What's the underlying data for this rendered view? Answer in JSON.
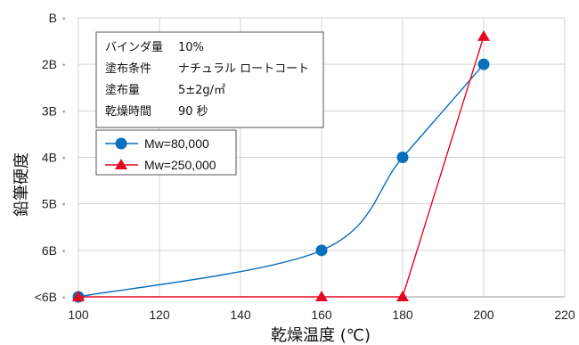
{
  "chart_data": {
    "type": "line",
    "title": "",
    "xlabel": "乾燥温度 (℃)",
    "ylabel": "鉛筆硬度",
    "xlim": [
      100,
      220
    ],
    "xticks": [
      "100",
      "120",
      "140",
      "160",
      "180",
      "200",
      "220"
    ],
    "ylevels": [
      "<6B",
      "6B",
      "5B",
      "4B",
      "3B",
      "2B",
      "B"
    ],
    "grid": true,
    "legend_position": "upper-left",
    "info": [
      {
        "label": "バインダ量",
        "value": "10%"
      },
      {
        "label": "塗布条件",
        "value": "ナチュラル ロートコート"
      },
      {
        "label": "塗布量",
        "value": "5±2g/㎡"
      },
      {
        "label": "乾燥時間",
        "value": "90 秒"
      }
    ],
    "series": [
      {
        "name": "Mw=80,000",
        "color": "#0a6fbd",
        "marker": "circle",
        "smooth": true,
        "points": [
          {
            "x": 100,
            "y": "<6B"
          },
          {
            "x": 160,
            "y": "6B"
          },
          {
            "x": 180,
            "y": "4B"
          },
          {
            "x": 200,
            "y": "2B"
          }
        ]
      },
      {
        "name": "Mw=250,000",
        "color": "#e30b20",
        "marker": "triangle",
        "smooth": false,
        "points": [
          {
            "x": 100,
            "y": "<6B"
          },
          {
            "x": 160,
            "y": "<6B"
          },
          {
            "x": 180,
            "y": "<6B"
          },
          {
            "x": 200,
            "y": "1.6B"
          }
        ],
        "y_numeric": [
          0,
          0,
          0,
          5.6
        ]
      }
    ]
  }
}
